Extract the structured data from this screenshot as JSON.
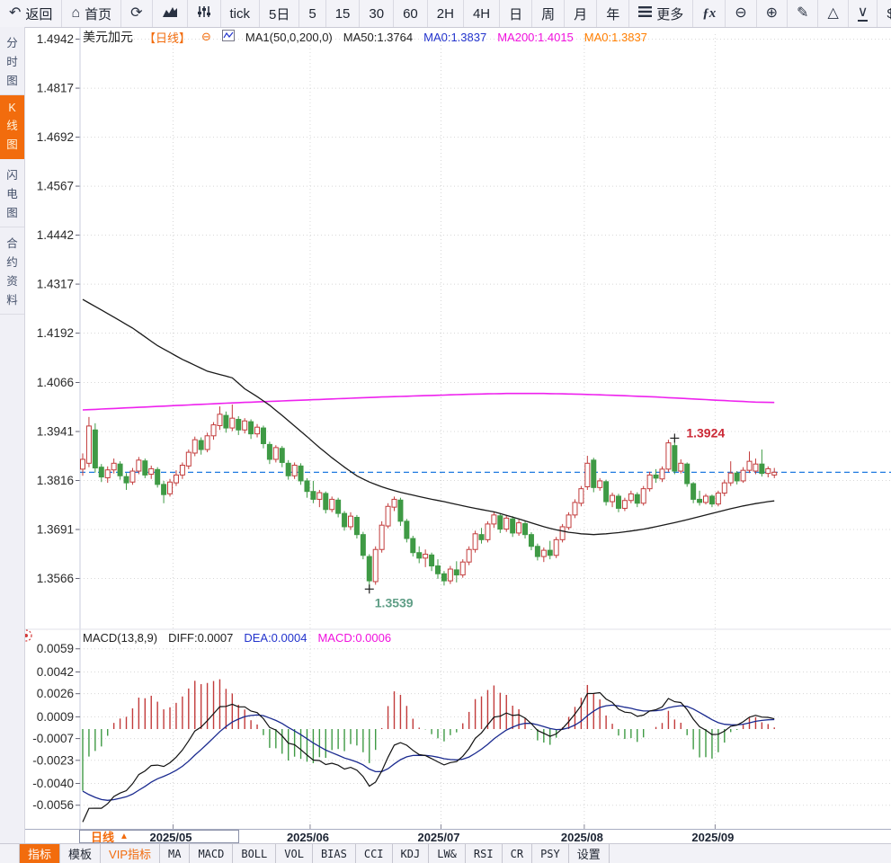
{
  "toolbar": {
    "items": [
      {
        "name": "back-button",
        "icon": "back",
        "label": "返回"
      },
      {
        "name": "home-button",
        "icon": "home",
        "label": "首页"
      },
      {
        "name": "refresh-button",
        "icon": "refresh"
      },
      {
        "name": "area-chart-button",
        "icon": "area-chart"
      },
      {
        "name": "sliders-button",
        "icon": "sliders"
      },
      {
        "name": "tick-period-button",
        "label": "tick"
      },
      {
        "name": "period-5d-button",
        "label": "5日"
      },
      {
        "name": "period-5-button",
        "label": "5"
      },
      {
        "name": "period-15-button",
        "label": "15"
      },
      {
        "name": "period-30-button",
        "label": "30"
      },
      {
        "name": "period-60-button",
        "label": "60"
      },
      {
        "name": "period-2h-button",
        "label": "2H"
      },
      {
        "name": "period-4h-button",
        "label": "4H"
      },
      {
        "name": "period-day-button",
        "label": "日"
      },
      {
        "name": "period-week-button",
        "label": "周"
      },
      {
        "name": "period-month-button",
        "label": "月"
      },
      {
        "name": "period-year-button",
        "label": "年"
      },
      {
        "name": "more-button",
        "icon": "menu",
        "label": "更多"
      },
      {
        "name": "formula-button",
        "icon": "fx"
      },
      {
        "name": "zoom-out-button",
        "icon": "zoom-out"
      },
      {
        "name": "zoom-in-button",
        "icon": "zoom-in"
      },
      {
        "name": "draw-button",
        "icon": "pencil"
      },
      {
        "name": "triangle-up-button",
        "icon": "triangle-up"
      },
      {
        "name": "triangle-down-button",
        "icon": "triangle-down"
      },
      {
        "name": "dollar-button",
        "label": "$"
      }
    ]
  },
  "sidebar": {
    "items": [
      {
        "name": "sidebar-item-time-chart",
        "label": "分时图",
        "active": false
      },
      {
        "name": "sidebar-item-kline-chart",
        "label": "K线图",
        "active": true
      },
      {
        "name": "sidebar-item-flash-chart",
        "label": "闪电图",
        "active": false
      },
      {
        "name": "sidebar-item-contract-info",
        "label": "合约资料",
        "active": false
      }
    ]
  },
  "price_legend": {
    "parts": [
      {
        "name": "symbol-name",
        "text": "美元加元",
        "color": "#222222",
        "size": 14
      },
      {
        "name": "period-tag",
        "text": "【日线】",
        "color": "#f26c0d",
        "size": 13
      },
      {
        "name": "collapse-icon",
        "text": "⊖",
        "color": "#f26c0d",
        "size": 13
      },
      {
        "name": "ma-box-icon",
        "icon": "ma-box"
      },
      {
        "name": "ma-group-label",
        "text": "MA1(50,0,200,0)",
        "color": "#222222",
        "size": 13
      },
      {
        "name": "ma50-value",
        "text": "MA50:1.3764",
        "color": "#222222",
        "size": 13
      },
      {
        "name": "ma0-blue-value",
        "text": "MA0:1.3837",
        "color": "#2233cc",
        "size": 13
      },
      {
        "name": "ma200-value",
        "text": "MA200:1.4015",
        "color": "#f011dd",
        "size": 13
      },
      {
        "name": "ma0-orange-value",
        "text": "MA0:1.3837",
        "color": "#ff7e00",
        "size": 13
      }
    ]
  },
  "macd_legend": {
    "parts": [
      {
        "name": "macd-title",
        "text": "MACD(13,8,9)",
        "color": "#222222",
        "size": 13
      },
      {
        "name": "diff-value",
        "text": "DIFF:0.0007",
        "color": "#222222",
        "size": 13
      },
      {
        "name": "dea-value",
        "text": "DEA:0.0004",
        "color": "#2233cc",
        "size": 13
      },
      {
        "name": "macd-value",
        "text": "MACD:0.0006",
        "color": "#f011dd",
        "size": 13
      }
    ]
  },
  "bottom": {
    "period_button": {
      "label": "日线",
      "caret": "▲"
    },
    "tabs": [
      {
        "name": "tab-indicator",
        "label": "指标",
        "active": true
      },
      {
        "name": "tab-template",
        "label": "模板"
      },
      {
        "name": "tab-vip-indicator",
        "label": "VIP指标",
        "vip": true
      },
      {
        "name": "tab-ma",
        "label": "MA",
        "mono": true
      },
      {
        "name": "tab-macd",
        "label": "MACD",
        "mono": true
      },
      {
        "name": "tab-boll",
        "label": "BOLL",
        "mono": true
      },
      {
        "name": "tab-vol",
        "label": "VOL",
        "mono": true
      },
      {
        "name": "tab-bias",
        "label": "BIAS",
        "mono": true
      },
      {
        "name": "tab-cci",
        "label": "CCI",
        "mono": true
      },
      {
        "name": "tab-kdj",
        "label": "KDJ",
        "mono": true
      },
      {
        "name": "tab-lw",
        "label": "LW&",
        "mono": true
      },
      {
        "name": "tab-rsi",
        "label": "RSI",
        "mono": true
      },
      {
        "name": "tab-cr",
        "label": "CR",
        "mono": true
      },
      {
        "name": "tab-psy",
        "label": "PSY",
        "mono": true
      },
      {
        "name": "tab-settings",
        "label": "设置"
      }
    ]
  },
  "colors": {
    "up": "#c23b3b",
    "down": "#3f9a45",
    "ma50": "#1a1a1a",
    "ma200": "#ee22ee",
    "diff_line": "#111111",
    "dea_line": "#1a2a8f",
    "last_price_line": "#1f7ae0",
    "accent": "#f26c0d",
    "annotation_high": "#cc2936",
    "annotation_low": "#5f9e86",
    "grid": "#d8d8d8",
    "axis_text": "#2a2a2a"
  },
  "chart_data": {
    "type": "candlestick",
    "symbol": "美元加元",
    "period": "日线",
    "y_axis_labels": [
      "1.4942",
      "1.4817",
      "1.4692",
      "1.4567",
      "1.4442",
      "1.4317",
      "1.4192",
      "1.4066",
      "1.3941",
      "1.3816",
      "1.3691",
      "1.3566"
    ],
    "x_axis_months": [
      {
        "label": "2025/05",
        "start_index": 15
      },
      {
        "label": "2025/06",
        "start_index": 37
      },
      {
        "label": "2025/07",
        "start_index": 58
      },
      {
        "label": "2025/08",
        "start_index": 81
      },
      {
        "label": "2025/09",
        "start_index": 102
      }
    ],
    "last_price": 1.3837,
    "annotations": [
      {
        "type": "high",
        "index": 95,
        "price": 1.3924,
        "label": "1.3924"
      },
      {
        "type": "low",
        "index": 46,
        "price": 1.3539,
        "label": "1.3539"
      }
    ],
    "candles": [
      [
        1.3845,
        1.3885,
        1.3828,
        1.387
      ],
      [
        1.386,
        1.3978,
        1.385,
        1.3955
      ],
      [
        1.3945,
        1.3962,
        1.3836,
        1.3848
      ],
      [
        1.385,
        1.3858,
        1.3812,
        1.3825
      ],
      [
        1.3823,
        1.3852,
        1.381,
        1.3843
      ],
      [
        1.3843,
        1.3872,
        1.3834,
        1.386
      ],
      [
        1.3858,
        1.3865,
        1.3818,
        1.3828
      ],
      [
        1.3826,
        1.3835,
        1.3792,
        1.381
      ],
      [
        1.3812,
        1.3848,
        1.3805,
        1.384
      ],
      [
        1.384,
        1.3876,
        1.3832,
        1.3868
      ],
      [
        1.3866,
        1.3872,
        1.3822,
        1.383
      ],
      [
        1.3832,
        1.3854,
        1.382,
        1.3846
      ],
      [
        1.3844,
        1.385,
        1.3798,
        1.3806
      ],
      [
        1.3806,
        1.3815,
        1.3758,
        1.378
      ],
      [
        1.3782,
        1.382,
        1.3775,
        1.3812
      ],
      [
        1.381,
        1.3842,
        1.3802,
        1.383
      ],
      [
        1.383,
        1.3862,
        1.382,
        1.3855
      ],
      [
        1.3853,
        1.3895,
        1.3845,
        1.3888
      ],
      [
        1.3886,
        1.3928,
        1.3878,
        1.392
      ],
      [
        1.3918,
        1.3926,
        1.3882,
        1.3895
      ],
      [
        1.3895,
        1.3938,
        1.3888,
        1.393
      ],
      [
        1.393,
        1.3965,
        1.392,
        1.3958
      ],
      [
        1.3956,
        1.4005,
        1.3945,
        1.3985
      ],
      [
        1.3982,
        1.3992,
        1.3938,
        1.395
      ],
      [
        1.395,
        1.401,
        1.3942,
        1.3975
      ],
      [
        1.3972,
        1.398,
        1.3932,
        1.3945
      ],
      [
        1.3945,
        1.3975,
        1.3936,
        1.3968
      ],
      [
        1.3966,
        1.3972,
        1.3922,
        1.3935
      ],
      [
        1.3935,
        1.396,
        1.3926,
        1.3952
      ],
      [
        1.395,
        1.3956,
        1.3898,
        1.391
      ],
      [
        1.3908,
        1.3915,
        1.3858,
        1.387
      ],
      [
        1.387,
        1.3906,
        1.3862,
        1.39
      ],
      [
        1.3898,
        1.3904,
        1.385,
        1.3862
      ],
      [
        1.386,
        1.3868,
        1.3818,
        1.3828
      ],
      [
        1.3828,
        1.3862,
        1.382,
        1.3855
      ],
      [
        1.3853,
        1.386,
        1.3805,
        1.3815
      ],
      [
        1.3815,
        1.3822,
        1.3772,
        1.3788
      ],
      [
        1.3788,
        1.3815,
        1.3758,
        1.3768
      ],
      [
        1.3768,
        1.3792,
        1.3748,
        1.3785
      ],
      [
        1.3783,
        1.3788,
        1.3732,
        1.3742
      ],
      [
        1.3742,
        1.3775,
        1.3735,
        1.3768
      ],
      [
        1.3766,
        1.3772,
        1.3722,
        1.3732
      ],
      [
        1.3732,
        1.3738,
        1.3688,
        1.3698
      ],
      [
        1.3698,
        1.3735,
        1.369,
        1.3725
      ],
      [
        1.3722,
        1.3728,
        1.3668,
        1.3678
      ],
      [
        1.3678,
        1.3685,
        1.3615,
        1.3625
      ],
      [
        1.3622,
        1.3628,
        1.3539,
        1.356
      ],
      [
        1.3558,
        1.3648,
        1.355,
        1.364
      ],
      [
        1.364,
        1.3712,
        1.3632,
        1.3702
      ],
      [
        1.37,
        1.3758,
        1.3694,
        1.375
      ],
      [
        1.3748,
        1.3775,
        1.3738,
        1.3768
      ],
      [
        1.3766,
        1.3772,
        1.37,
        1.3712
      ],
      [
        1.3712,
        1.3718,
        1.3658,
        1.3668
      ],
      [
        1.3668,
        1.3675,
        1.3622,
        1.3632
      ],
      [
        1.3632,
        1.3648,
        1.3605,
        1.3618
      ],
      [
        1.3618,
        1.364,
        1.3595,
        1.3628
      ],
      [
        1.3626,
        1.3632,
        1.3585,
        1.3598
      ],
      [
        1.3598,
        1.3615,
        1.3565,
        1.3578
      ],
      [
        1.3578,
        1.3585,
        1.3548,
        1.356
      ],
      [
        1.356,
        1.3598,
        1.3552,
        1.359
      ],
      [
        1.3588,
        1.361,
        1.3556,
        1.3575
      ],
      [
        1.3575,
        1.3615,
        1.3568,
        1.3608
      ],
      [
        1.3608,
        1.3648,
        1.36,
        1.364
      ],
      [
        1.364,
        1.3688,
        1.3632,
        1.368
      ],
      [
        1.3678,
        1.3695,
        1.3655,
        1.3665
      ],
      [
        1.3665,
        1.3712,
        1.3658,
        1.3705
      ],
      [
        1.3705,
        1.3735,
        1.3695,
        1.3728
      ],
      [
        1.3726,
        1.3732,
        1.3682,
        1.3692
      ],
      [
        1.3692,
        1.3728,
        1.3685,
        1.372
      ],
      [
        1.3718,
        1.3725,
        1.3672,
        1.3682
      ],
      [
        1.3682,
        1.3716,
        1.3675,
        1.3708
      ],
      [
        1.3706,
        1.3712,
        1.3668,
        1.3678
      ],
      [
        1.3678,
        1.3684,
        1.3638,
        1.3648
      ],
      [
        1.3648,
        1.3655,
        1.3612,
        1.3622
      ],
      [
        1.3622,
        1.3645,
        1.3608,
        1.3638
      ],
      [
        1.3638,
        1.3662,
        1.3615,
        1.3625
      ],
      [
        1.3625,
        1.3672,
        1.3618,
        1.3665
      ],
      [
        1.3665,
        1.3705,
        1.3658,
        1.3698
      ],
      [
        1.3696,
        1.3735,
        1.369,
        1.3728
      ],
      [
        1.3728,
        1.3768,
        1.372,
        1.376
      ],
      [
        1.3758,
        1.3802,
        1.375,
        1.3795
      ],
      [
        1.38,
        1.3879,
        1.3792,
        1.386
      ],
      [
        1.3868,
        1.3874,
        1.3786,
        1.3798
      ],
      [
        1.3798,
        1.3822,
        1.379,
        1.3815
      ],
      [
        1.3813,
        1.3818,
        1.3752,
        1.3762
      ],
      [
        1.3762,
        1.3785,
        1.3748,
        1.3778
      ],
      [
        1.3776,
        1.3782,
        1.3735,
        1.3745
      ],
      [
        1.3745,
        1.3772,
        1.3738,
        1.3765
      ],
      [
        1.3765,
        1.379,
        1.3758,
        1.3782
      ],
      [
        1.378,
        1.3786,
        1.3748,
        1.3758
      ],
      [
        1.3758,
        1.3802,
        1.3752,
        1.3795
      ],
      [
        1.3795,
        1.3838,
        1.3788,
        1.383
      ],
      [
        1.383,
        1.3845,
        1.381,
        1.3822
      ],
      [
        1.382,
        1.3852,
        1.3812,
        1.3845
      ],
      [
        1.3845,
        1.392,
        1.3838,
        1.3912
      ],
      [
        1.3905,
        1.3924,
        1.3832,
        1.384
      ],
      [
        1.384,
        1.387,
        1.3834,
        1.386
      ],
      [
        1.3858,
        1.3862,
        1.38,
        1.3808
      ],
      [
        1.3808,
        1.3812,
        1.3758,
        1.3768
      ],
      [
        1.3768,
        1.379,
        1.3752,
        1.376
      ],
      [
        1.376,
        1.3782,
        1.3755,
        1.3776
      ],
      [
        1.3776,
        1.378,
        1.3748,
        1.3756
      ],
      [
        1.3756,
        1.379,
        1.375,
        1.3784
      ],
      [
        1.3784,
        1.3818,
        1.3776,
        1.381
      ],
      [
        1.381,
        1.3865,
        1.3802,
        1.3835
      ],
      [
        1.3835,
        1.384,
        1.3806,
        1.3815
      ],
      [
        1.3815,
        1.385,
        1.381,
        1.3842
      ],
      [
        1.3842,
        1.389,
        1.3835,
        1.3865
      ],
      [
        1.384,
        1.3872,
        1.3832,
        1.3858
      ],
      [
        1.3858,
        1.3895,
        1.3826,
        1.3834
      ],
      [
        1.3834,
        1.3852,
        1.3824,
        1.3846
      ],
      [
        1.383,
        1.3848,
        1.3822,
        1.3837
      ]
    ],
    "ma50_points": [
      [
        0,
        1.4278
      ],
      [
        4,
        1.4242
      ],
      [
        8,
        1.4205
      ],
      [
        12,
        1.416
      ],
      [
        16,
        1.4125
      ],
      [
        20,
        1.4095
      ],
      [
        24,
        1.4078
      ],
      [
        26,
        1.405
      ],
      [
        28,
        1.403
      ],
      [
        30,
        1.4008
      ],
      [
        32,
        1.3982
      ],
      [
        34,
        1.3955
      ],
      [
        36,
        1.3928
      ],
      [
        38,
        1.39
      ],
      [
        40,
        1.3874
      ],
      [
        42,
        1.385
      ],
      [
        44,
        1.3828
      ],
      [
        46,
        1.3812
      ],
      [
        48,
        1.38
      ],
      [
        50,
        1.379
      ],
      [
        52,
        1.3782
      ],
      [
        54,
        1.3775
      ],
      [
        56,
        1.3768
      ],
      [
        58,
        1.3762
      ],
      [
        60,
        1.3755
      ],
      [
        62,
        1.3748
      ],
      [
        64,
        1.3742
      ],
      [
        66,
        1.3736
      ],
      [
        68,
        1.3727
      ],
      [
        70,
        1.3718
      ],
      [
        72,
        1.3708
      ],
      [
        74,
        1.3698
      ],
      [
        76,
        1.369
      ],
      [
        78,
        1.3684
      ],
      [
        80,
        1.368
      ],
      [
        82,
        1.3678
      ],
      [
        84,
        1.368
      ],
      [
        86,
        1.3683
      ],
      [
        88,
        1.3687
      ],
      [
        90,
        1.3692
      ],
      [
        92,
        1.3698
      ],
      [
        94,
        1.3705
      ],
      [
        96,
        1.3712
      ],
      [
        98,
        1.372
      ],
      [
        100,
        1.3728
      ],
      [
        102,
        1.3736
      ],
      [
        104,
        1.3744
      ],
      [
        106,
        1.3751
      ],
      [
        108,
        1.3757
      ],
      [
        110,
        1.3762
      ],
      [
        111,
        1.3764
      ]
    ],
    "ma200_points": [
      [
        0,
        1.3996
      ],
      [
        8,
        1.4002
      ],
      [
        16,
        1.4008
      ],
      [
        24,
        1.4014
      ],
      [
        32,
        1.4019
      ],
      [
        40,
        1.4024
      ],
      [
        48,
        1.4029
      ],
      [
        56,
        1.4033
      ],
      [
        62,
        1.4036
      ],
      [
        68,
        1.4038
      ],
      [
        74,
        1.4038
      ],
      [
        80,
        1.4036
      ],
      [
        86,
        1.4033
      ],
      [
        92,
        1.4029
      ],
      [
        98,
        1.4024
      ],
      [
        104,
        1.4019
      ],
      [
        108,
        1.4016
      ],
      [
        111,
        1.4015
      ]
    ],
    "macd": {
      "params": [
        13,
        8,
        9
      ],
      "axis_labels": [
        "0.0059",
        "0.0042",
        "0.0026",
        "0.0009",
        "-0.0007",
        "-0.0023",
        "-0.0040",
        "-0.0056"
      ],
      "seeds": {
        "ema_fast": 1.3975,
        "ema_slow": 1.4045,
        "dea": -0.004
      },
      "last": {
        "diff": 0.0007,
        "dea": 0.0004,
        "macd": 0.0006
      }
    }
  }
}
